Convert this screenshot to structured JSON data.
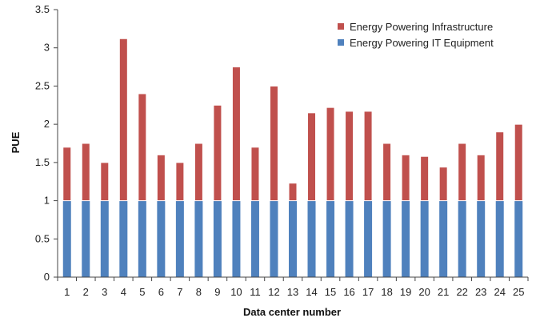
{
  "chart_data": {
    "type": "bar",
    "stacked": true,
    "xlabel": "Data center number",
    "ylabel": "PUE",
    "ylim": [
      0,
      3.5
    ],
    "yticks": [
      "0",
      "0.5",
      "1",
      "1.5",
      "2",
      "2.5",
      "3",
      "3.5"
    ],
    "grid": false,
    "legend_position": "top-right",
    "categories": [
      "1",
      "2",
      "3",
      "4",
      "5",
      "6",
      "7",
      "8",
      "9",
      "10",
      "11",
      "12",
      "13",
      "14",
      "15",
      "16",
      "17",
      "18",
      "19",
      "20",
      "21",
      "22",
      "23",
      "24",
      "25"
    ],
    "series": [
      {
        "name": "Energy Powering IT Equipment",
        "color": "#4f81bd",
        "values": [
          1,
          1,
          1,
          1,
          1,
          1,
          1,
          1,
          1,
          1,
          1,
          1,
          1,
          1,
          1,
          1,
          1,
          1,
          1,
          1,
          1,
          1,
          1,
          1,
          1
        ]
      },
      {
        "name": "Energy Powering Infrastructure",
        "color": "#c0504d",
        "values": [
          0.7,
          0.75,
          0.5,
          2.12,
          1.4,
          0.6,
          0.5,
          0.75,
          1.25,
          1.75,
          0.7,
          1.5,
          0.23,
          1.15,
          1.22,
          1.17,
          1.17,
          0.75,
          0.6,
          0.58,
          0.44,
          0.75,
          0.6,
          0.9,
          1.0
        ]
      }
    ],
    "legend_order": [
      "Energy Powering Infrastructure",
      "Energy Powering IT Equipment"
    ]
  }
}
